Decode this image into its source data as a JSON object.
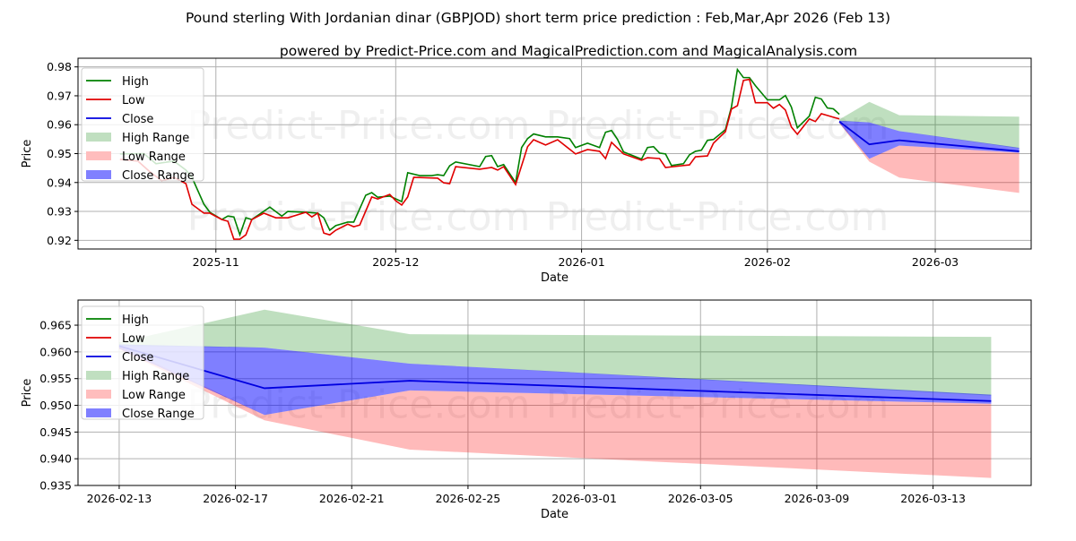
{
  "title": "Pound sterling With Jordanian dinar (GBPJOD) short term price prediction : Feb,Mar,Apr 2026 (Feb 13)",
  "subtitle": "powered by Predict-Price.com and MagicalPrediction.com and MagicalAnalysis.com",
  "watermark": "Predict-Price.com",
  "colors": {
    "high": "#008000",
    "low": "#e00000",
    "close": "#0000e0",
    "high_range": "#c0dfc0",
    "low_range": "#ffbdbd",
    "close_range": "#8080ff",
    "grid": "#b0b0b0"
  },
  "legend": [
    "High",
    "Low",
    "Close",
    "High Range",
    "Low Range",
    "Close Range"
  ],
  "chart_data": [
    {
      "type": "line",
      "xlabel": "Date",
      "ylabel": "Price",
      "xlim": [
        "2025-10-09",
        "2026-03-17"
      ],
      "ylim": [
        0.917,
        0.983
      ],
      "grid": true,
      "legend_placement": "top-left",
      "x_ticks": [
        "2025-11",
        "2025-12",
        "2026-01",
        "2026-02",
        "2026-03"
      ],
      "y_ticks": [
        "0.92",
        "0.93",
        "0.94",
        "0.95",
        "0.96",
        "0.97",
        "0.98"
      ],
      "high": [
        [
          "2025-10-16",
          0.9499
        ],
        [
          "2025-10-20",
          0.95
        ],
        [
          "2025-10-22",
          0.9465
        ],
        [
          "2025-10-25",
          0.9474
        ],
        [
          "2025-10-27",
          0.9443
        ],
        [
          "2025-10-28",
          0.9418
        ],
        [
          "2025-10-30",
          0.9325
        ],
        [
          "2025-10-31",
          0.9297
        ],
        [
          "2025-11-02",
          0.9272
        ],
        [
          "2025-11-03",
          0.9284
        ],
        [
          "2025-11-04",
          0.9281
        ],
        [
          "2025-11-05",
          0.9219
        ],
        [
          "2025-11-06",
          0.9278
        ],
        [
          "2025-11-07",
          0.9272
        ],
        [
          "2025-11-10",
          0.9315
        ],
        [
          "2025-11-12",
          0.9284
        ],
        [
          "2025-11-13",
          0.93
        ],
        [
          "2025-11-16",
          0.9297
        ],
        [
          "2025-11-18",
          0.9294
        ],
        [
          "2025-11-19",
          0.9278
        ],
        [
          "2025-11-20",
          0.9235
        ],
        [
          "2025-11-21",
          0.9251
        ],
        [
          "2025-11-23",
          0.9263
        ],
        [
          "2025-11-24",
          0.9263
        ],
        [
          "2025-11-26",
          0.9356
        ],
        [
          "2025-11-27",
          0.9365
        ],
        [
          "2025-11-28",
          0.9349
        ],
        [
          "2025-11-30",
          0.9353
        ],
        [
          "2025-12-02",
          0.9334
        ],
        [
          "2025-12-03",
          0.9434
        ],
        [
          "2025-12-05",
          0.9424
        ],
        [
          "2025-12-07",
          0.9424
        ],
        [
          "2025-12-08",
          0.9427
        ],
        [
          "2025-12-09",
          0.9424
        ],
        [
          "2025-12-10",
          0.9458
        ],
        [
          "2025-12-11",
          0.9471
        ],
        [
          "2025-12-15",
          0.9455
        ],
        [
          "2025-12-16",
          0.949
        ],
        [
          "2025-12-17",
          0.9493
        ],
        [
          "2025-12-18",
          0.9455
        ],
        [
          "2025-12-19",
          0.9462
        ],
        [
          "2025-12-21",
          0.94
        ],
        [
          "2025-12-22",
          0.9521
        ],
        [
          "2025-12-23",
          0.9552
        ],
        [
          "2025-12-24",
          0.9568
        ],
        [
          "2025-12-26",
          0.9558
        ],
        [
          "2025-12-28",
          0.9558
        ],
        [
          "2025-12-30",
          0.9552
        ],
        [
          "2025-12-31",
          0.9521
        ],
        [
          "2026-01-02",
          0.9536
        ],
        [
          "2026-01-04",
          0.9521
        ],
        [
          "2026-01-05",
          0.9574
        ],
        [
          "2026-01-06",
          0.958
        ],
        [
          "2026-01-07",
          0.9549
        ],
        [
          "2026-01-08",
          0.9506
        ],
        [
          "2026-01-11",
          0.9481
        ],
        [
          "2026-01-12",
          0.9521
        ],
        [
          "2026-01-13",
          0.9524
        ],
        [
          "2026-01-14",
          0.9502
        ],
        [
          "2026-01-15",
          0.9499
        ],
        [
          "2026-01-16",
          0.9459
        ],
        [
          "2026-01-18",
          0.9465
        ],
        [
          "2026-01-19",
          0.9496
        ],
        [
          "2026-01-20",
          0.9508
        ],
        [
          "2026-01-21",
          0.9512
        ],
        [
          "2026-01-22",
          0.9546
        ],
        [
          "2026-01-23",
          0.9549
        ],
        [
          "2026-01-25",
          0.9583
        ],
        [
          "2026-01-26",
          0.9661
        ],
        [
          "2026-01-27",
          0.9791
        ],
        [
          "2026-01-28",
          0.9763
        ],
        [
          "2026-01-29",
          0.9763
        ],
        [
          "2026-01-30",
          0.9735
        ],
        [
          "2026-02-01",
          0.9686
        ],
        [
          "2026-02-03",
          0.9686
        ],
        [
          "2026-02-04",
          0.9701
        ],
        [
          "2026-02-05",
          0.9661
        ],
        [
          "2026-02-06",
          0.9589
        ],
        [
          "2026-02-08",
          0.963
        ],
        [
          "2026-02-09",
          0.9695
        ],
        [
          "2026-02-10",
          0.9689
        ],
        [
          "2026-02-11",
          0.9658
        ],
        [
          "2026-02-12",
          0.9655
        ],
        [
          "2026-02-13",
          0.9636
        ]
      ],
      "low": [
        [
          "2025-10-16",
          0.948
        ],
        [
          "2025-10-19",
          0.9474
        ],
        [
          "2025-10-21",
          0.9437
        ],
        [
          "2025-10-23",
          0.9406
        ],
        [
          "2025-10-24",
          0.9412
        ],
        [
          "2025-10-25",
          0.9418
        ],
        [
          "2025-10-27",
          0.9396
        ],
        [
          "2025-10-28",
          0.9325
        ],
        [
          "2025-10-30",
          0.9294
        ],
        [
          "2025-10-31",
          0.9294
        ],
        [
          "2025-11-02",
          0.9272
        ],
        [
          "2025-11-03",
          0.9266
        ],
        [
          "2025-11-04",
          0.9204
        ],
        [
          "2025-11-05",
          0.9204
        ],
        [
          "2025-11-06",
          0.9219
        ],
        [
          "2025-11-07",
          0.9272
        ],
        [
          "2025-11-09",
          0.9294
        ],
        [
          "2025-11-11",
          0.9278
        ],
        [
          "2025-11-13",
          0.9278
        ],
        [
          "2025-11-16",
          0.9297
        ],
        [
          "2025-11-17",
          0.9281
        ],
        [
          "2025-11-18",
          0.9294
        ],
        [
          "2025-11-19",
          0.9225
        ],
        [
          "2025-11-20",
          0.9219
        ],
        [
          "2025-11-21",
          0.9235
        ],
        [
          "2025-11-23",
          0.9256
        ],
        [
          "2025-11-24",
          0.9247
        ],
        [
          "2025-11-25",
          0.9253
        ],
        [
          "2025-11-27",
          0.935
        ],
        [
          "2025-11-28",
          0.9343
        ],
        [
          "2025-11-30",
          0.9359
        ],
        [
          "2025-12-01",
          0.9337
        ],
        [
          "2025-12-02",
          0.9322
        ],
        [
          "2025-12-03",
          0.935
        ],
        [
          "2025-12-04",
          0.9418
        ],
        [
          "2025-12-08",
          0.9415
        ],
        [
          "2025-12-09",
          0.9399
        ],
        [
          "2025-12-10",
          0.9396
        ],
        [
          "2025-12-11",
          0.9455
        ],
        [
          "2025-12-15",
          0.9446
        ],
        [
          "2025-12-17",
          0.9452
        ],
        [
          "2025-12-18",
          0.9443
        ],
        [
          "2025-12-19",
          0.9455
        ],
        [
          "2025-12-21",
          0.9393
        ],
        [
          "2025-12-23",
          0.9524
        ],
        [
          "2025-12-24",
          0.9548
        ],
        [
          "2025-12-26",
          0.953
        ],
        [
          "2025-12-28",
          0.9548
        ],
        [
          "2025-12-31",
          0.9499
        ],
        [
          "2026-01-02",
          0.9514
        ],
        [
          "2026-01-04",
          0.9508
        ],
        [
          "2026-01-05",
          0.9483
        ],
        [
          "2026-01-06",
          0.9539
        ],
        [
          "2026-01-08",
          0.9499
        ],
        [
          "2026-01-11",
          0.9477
        ],
        [
          "2026-01-12",
          0.9486
        ],
        [
          "2026-01-14",
          0.9483
        ],
        [
          "2026-01-15",
          0.9452
        ],
        [
          "2026-01-19",
          0.9461
        ],
        [
          "2026-01-20",
          0.9489
        ],
        [
          "2026-01-22",
          0.9492
        ],
        [
          "2026-01-23",
          0.9536
        ],
        [
          "2026-01-25",
          0.9576
        ],
        [
          "2026-01-26",
          0.9654
        ],
        [
          "2026-01-27",
          0.9666
        ],
        [
          "2026-01-28",
          0.9753
        ],
        [
          "2026-01-29",
          0.9757
        ],
        [
          "2026-01-30",
          0.9676
        ],
        [
          "2026-02-01",
          0.9676
        ],
        [
          "2026-02-02",
          0.9657
        ],
        [
          "2026-02-03",
          0.967
        ],
        [
          "2026-02-04",
          0.9651
        ],
        [
          "2026-02-05",
          0.9592
        ],
        [
          "2026-02-06",
          0.9567
        ],
        [
          "2026-02-08",
          0.962
        ],
        [
          "2026-02-09",
          0.9611
        ],
        [
          "2026-02-10",
          0.9638
        ],
        [
          "2026-02-11",
          0.9632
        ],
        [
          "2026-02-12",
          0.9626
        ],
        [
          "2026-02-13",
          0.962
        ]
      ]
    },
    {
      "type": "line",
      "xlabel": "Date",
      "ylabel": "Price",
      "xlim": [
        "2026-02-11T14:00",
        "2026-03-16T09:00"
      ],
      "ylim": [
        0.935,
        0.9697
      ],
      "grid": true,
      "legend_placement": "top-left",
      "x_ticks": [
        "2026-02-13",
        "2026-02-17",
        "2026-02-21",
        "2026-02-25",
        "2026-03-01",
        "2026-03-05",
        "2026-03-09",
        "2026-03-13"
      ],
      "y_ticks": [
        "0.935",
        "0.940",
        "0.945",
        "0.950",
        "0.955",
        "0.960",
        "0.965"
      ]
    }
  ],
  "forecast": {
    "dates": [
      "2026-02-13",
      "2026-02-18",
      "2026-02-23",
      "2026-03-15"
    ],
    "close": [
      0.9611,
      0.9532,
      0.9546,
      0.9508
    ],
    "high_range": [
      [
        0.9611,
        0.9618
      ],
      [
        0.9608,
        0.9679
      ],
      [
        0.9578,
        0.9633
      ],
      [
        0.9518,
        0.9628
      ]
    ],
    "low_range": [
      [
        0.9605,
        0.9611
      ],
      [
        0.9472,
        0.9482
      ],
      [
        0.9417,
        0.9528
      ],
      [
        0.9364,
        0.9503
      ]
    ],
    "close_range": [
      [
        0.9606,
        0.9614
      ],
      [
        0.9482,
        0.9608
      ],
      [
        0.9528,
        0.9578
      ],
      [
        0.9503,
        0.952
      ]
    ]
  }
}
